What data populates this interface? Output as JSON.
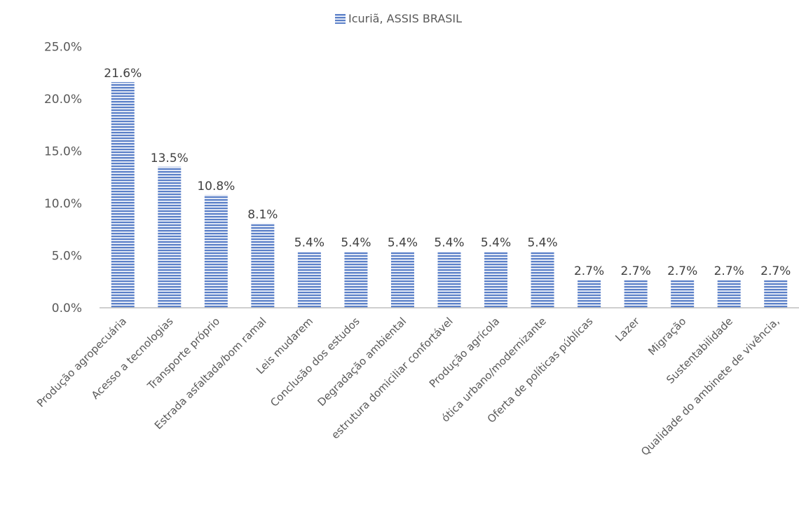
{
  "chart_data": {
    "type": "bar",
    "categories": [
      "Produção agropecuária",
      "Acesso a tecnologias",
      "Transporte próprio",
      "Estrada asfaltada/bom ramal",
      "Leis mudarem",
      "Conclusão dos estudos",
      "Degradação ambiental",
      "estrutura domiciliar confortável",
      "Produção agrícola",
      "ótica urbano/modernizante",
      "Oferta de políticas públicas",
      "Lazer",
      "Migração",
      "Sustentabilidade",
      "Qualidade do ambinete de vivência,"
    ],
    "series": [
      {
        "name": "Icuriã, ASSIS BRASIL",
        "values": [
          21.6,
          13.5,
          10.8,
          8.1,
          5.4,
          5.4,
          5.4,
          5.4,
          5.4,
          5.4,
          2.7,
          2.7,
          2.7,
          2.7,
          2.7
        ],
        "labels": [
          "21.6%",
          "13.5%",
          "10.8%",
          "8.1%",
          "5.4%",
          "5.4%",
          "5.4%",
          "5.4%",
          "5.4%",
          "5.4%",
          "2.7%",
          "2.7%",
          "2.7%",
          "2.7%",
          "2.7%"
        ]
      }
    ],
    "yticks": [
      "0.0%",
      "5.0%",
      "10.0%",
      "15.0%",
      "20.0%",
      "25.0%"
    ],
    "ylim": [
      0,
      25
    ],
    "legend_position": "top",
    "grid": false,
    "colors": {
      "bar": "#5b80c8",
      "bar_stripe": "#ffffff",
      "axis": "#bfbfbf"
    }
  }
}
